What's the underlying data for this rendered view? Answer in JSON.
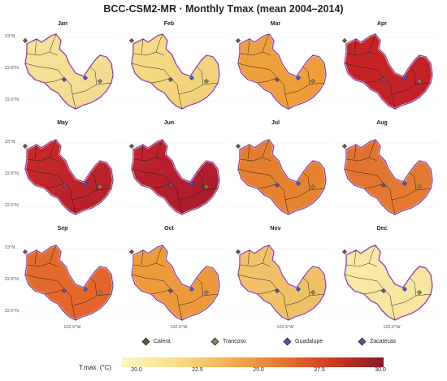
{
  "title": "BCC-CSM2-MR · Monthly Tmax (mean 2004–2014)",
  "panels": [
    {
      "month": "Jan",
      "fill": "#f6e39a",
      "east": "#f1da8e"
    },
    {
      "month": "Feb",
      "fill": "#f6de8a",
      "east": "#f0cf74"
    },
    {
      "month": "Mar",
      "fill": "#eda23f",
      "east": "#ef9b37"
    },
    {
      "month": "Apr",
      "fill": "#c62424",
      "east": "#c0202a"
    },
    {
      "month": "May",
      "fill": "#c82a28",
      "east": "#b41e2a"
    },
    {
      "month": "Jun",
      "fill": "#c0242b",
      "east": "#a81a2d"
    },
    {
      "month": "Jul",
      "fill": "#e27a2e",
      "east": "#e8872f"
    },
    {
      "month": "Aug",
      "fill": "#e0702e",
      "east": "#e57e31"
    },
    {
      "month": "Sep",
      "fill": "#e36f2d",
      "east": "#e4622b"
    },
    {
      "month": "Oct",
      "fill": "#ec9c3c",
      "east": "#ed973a"
    },
    {
      "month": "Nov",
      "fill": "#f2c26a",
      "east": "#eec064"
    },
    {
      "month": "Dec",
      "fill": "#f7eca9",
      "east": "#f6e49c"
    }
  ],
  "lat_ticks": [
    "23°N",
    "22.8°N",
    "22.6°N"
  ],
  "lon_tick": "102.5°W",
  "legend": [
    {
      "name": "Calera",
      "color": "#6b5a3a"
    },
    {
      "name": "Trancoso",
      "color": "#8c8a55"
    },
    {
      "name": "Guadalupe",
      "color": "#3b5cc8"
    },
    {
      "name": "Zacatecas",
      "color": "#6a4aa0"
    }
  ],
  "colorbar": {
    "title": "T.max. (°C)",
    "ticks": [
      "20.0",
      "22.5",
      "25.0",
      "27.5",
      "30.0"
    ],
    "colors": [
      "#fbf6c4",
      "#f8e08a",
      "#f3b355",
      "#e67a2e",
      "#cf3a23",
      "#8a1a2a"
    ]
  }
}
